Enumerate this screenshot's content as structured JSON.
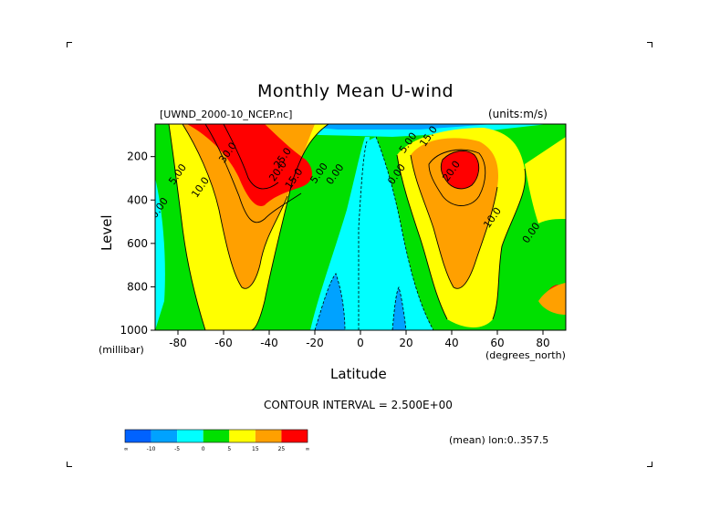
{
  "chart_data": {
    "type": "contour",
    "title": "Monthly Mean U-wind",
    "dataset_label": "[UWND_2000-10_NCEP.nc]",
    "units_label": "(units:m/s)",
    "xlabel": "Latitude",
    "x_unit_label": "(degrees_north)",
    "ylabel": "Level",
    "y_unit_label": "(millibar)",
    "xlim": [
      -90,
      90
    ],
    "ylim": [
      1000,
      50
    ],
    "x_ticks": [
      -80,
      -60,
      -40,
      -20,
      0,
      20,
      40,
      60,
      80
    ],
    "x_tick_labels": [
      "-80",
      "-60",
      "-40",
      "-20",
      "0",
      "20",
      "40",
      "60",
      "80"
    ],
    "y_ticks": [
      200,
      400,
      600,
      800,
      1000
    ],
    "y_tick_labels": [
      "200",
      "400",
      "600",
      "800",
      "1000"
    ],
    "contour_interval_text": "CONTOUR INTERVAL = 2.500E+00",
    "mean_note": "(mean) lon:0..357.5",
    "contour_labels": [
      {
        "text": "30.0",
        "x": -57,
        "y": 190
      },
      {
        "text": "25.0",
        "x": -33,
        "y": 215
      },
      {
        "text": "20.0",
        "x": -35,
        "y": 275
      },
      {
        "text": "15.0",
        "x": -28,
        "y": 310
      },
      {
        "text": "10.0",
        "x": -69,
        "y": 350
      },
      {
        "text": "5.00",
        "x": -79,
        "y": 290
      },
      {
        "text": "0.00",
        "x": -87,
        "y": 445
      },
      {
        "text": "5.00",
        "x": -17,
        "y": 285
      },
      {
        "text": "0.00",
        "x": -10,
        "y": 290
      },
      {
        "text": "0.00",
        "x": 17,
        "y": 290
      },
      {
        "text": "5.00",
        "x": 22,
        "y": 145
      },
      {
        "text": "15.0",
        "x": 31,
        "y": 115
      },
      {
        "text": "20.0",
        "x": 41,
        "y": 275
      },
      {
        "text": "10.0",
        "x": 59,
        "y": 490
      },
      {
        "text": "0.00",
        "x": 76,
        "y": 560
      }
    ],
    "colorbar": {
      "colors": [
        "#0062ff",
        "#00a2ff",
        "#00ffff",
        "#00e000",
        "#ffff00",
        "#ffa000",
        "#ff0000"
      ],
      "tick_labels": [
        "-∞",
        "-10",
        "-5",
        "0",
        "5",
        "15",
        "25",
        "∞"
      ]
    }
  }
}
